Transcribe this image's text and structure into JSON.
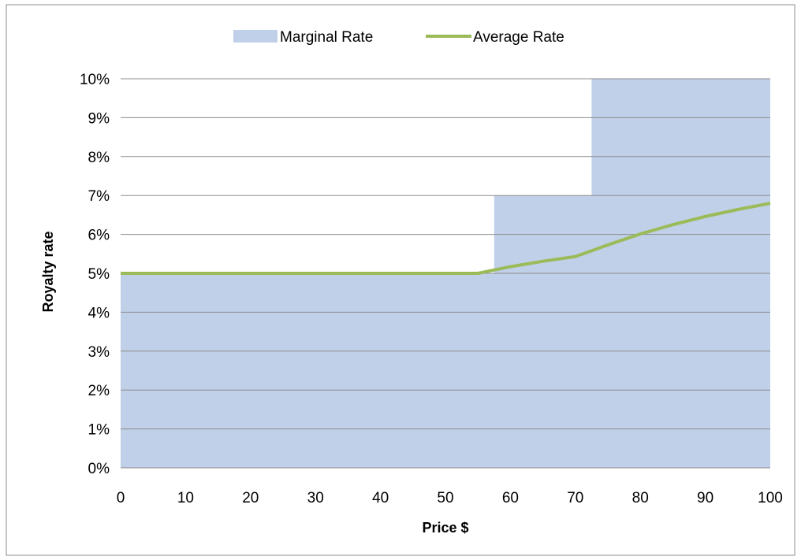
{
  "chart_data": {
    "type": "area",
    "xlabel": "Price $",
    "ylabel": "Royalty rate",
    "xlim": [
      0,
      100
    ],
    "ylim": [
      0,
      0.1
    ],
    "x_ticks": [
      0,
      10,
      20,
      30,
      40,
      50,
      60,
      70,
      80,
      90,
      100
    ],
    "y_ticks": [
      "0%",
      "1%",
      "2%",
      "3%",
      "4%",
      "5%",
      "6%",
      "7%",
      "8%",
      "9%",
      "10%"
    ],
    "y_tick_values": [
      0,
      0.01,
      0.02,
      0.03,
      0.04,
      0.05,
      0.06,
      0.07,
      0.08,
      0.09,
      0.1
    ],
    "grid": "horizontal",
    "legend_position": "top",
    "series": [
      {
        "name": "Marginal Rate",
        "kind": "area",
        "color": "#c0d0e8",
        "x": [
          0,
          57.5,
          57.5,
          72.5,
          72.5,
          100
        ],
        "y": [
          0.05,
          0.05,
          0.07,
          0.07,
          0.1,
          0.1
        ]
      },
      {
        "name": "Average Rate",
        "kind": "line",
        "color": "#9bbb59",
        "x": [
          0,
          55,
          60,
          65,
          70,
          75,
          80,
          85,
          90,
          95,
          100
        ],
        "y": [
          0.05,
          0.05,
          0.0517,
          0.0531,
          0.0543,
          0.0573,
          0.0601,
          0.0625,
          0.0646,
          0.0664,
          0.068
        ]
      }
    ]
  }
}
